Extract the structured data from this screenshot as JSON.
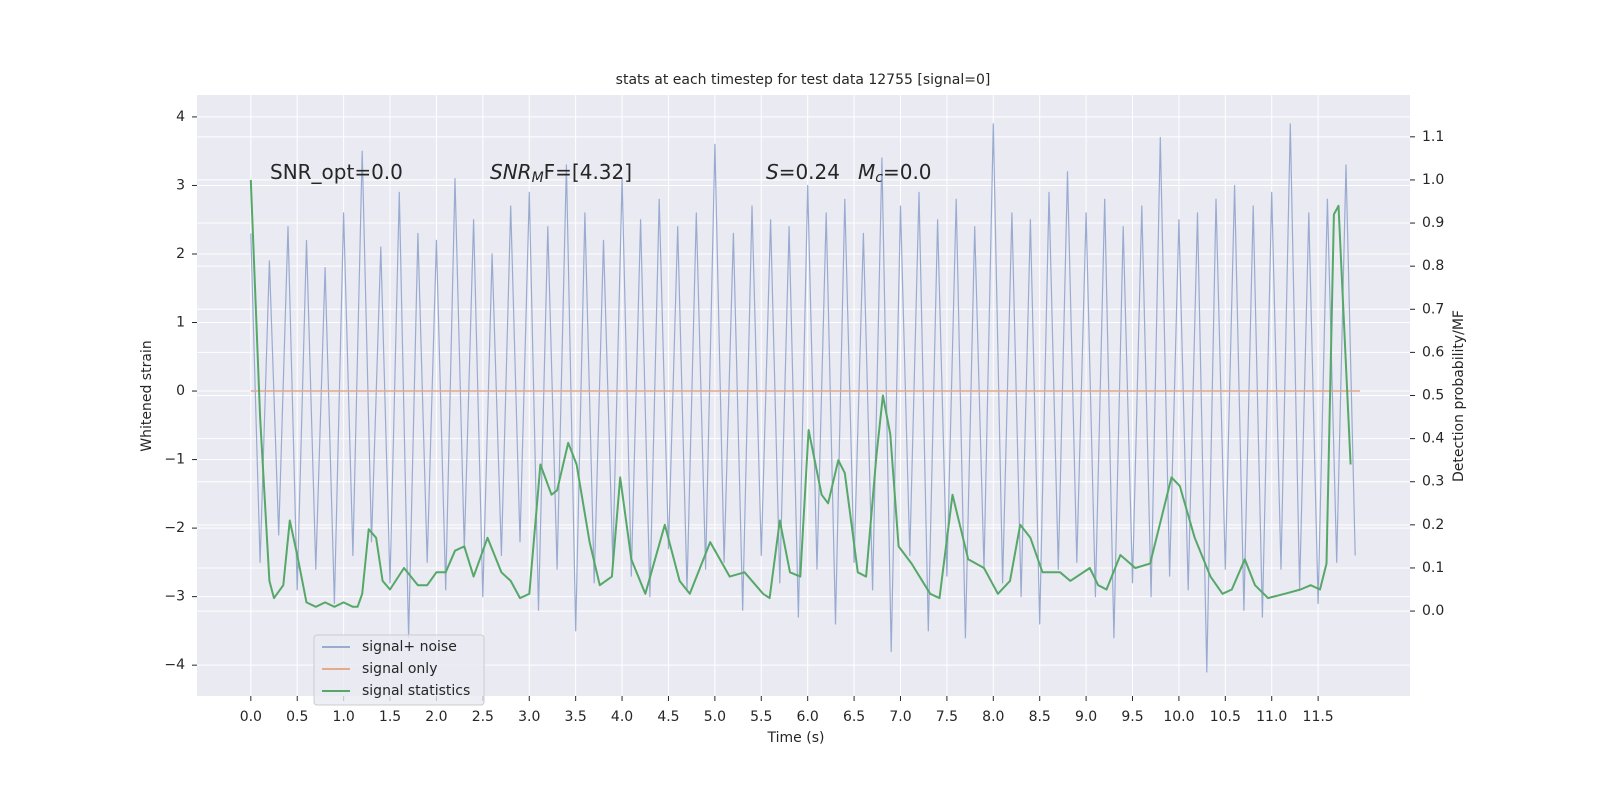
{
  "chart_data": {
    "type": "line",
    "title": "stats at each timestep for test data 12755 [signal=0]",
    "xlabel": "Time (s)",
    "ylabel": "Whitened strain",
    "y2label": "Detection probability/MF",
    "annotations": [
      [
        "SNR_opt=0.0"
      ],
      [
        "SNR",
        "M",
        "F=[4.32]"
      ],
      [
        "S",
        "=0.24"
      ],
      [
        "M",
        "c",
        "=0.0"
      ]
    ],
    "xlim": [
      -0.58,
      12.49
    ],
    "ylim": [
      -4.45,
      4.32
    ],
    "y2lim": [
      -0.197,
      1.197
    ],
    "xticks": [
      {
        "value": 0,
        "label": "0.0"
      },
      0.5,
      {
        "value": 1,
        "label": "1.0"
      },
      1.5,
      {
        "value": 2,
        "label": "2.0"
      },
      2.5,
      {
        "value": 3,
        "label": "3.0"
      },
      3.5,
      {
        "value": 4,
        "label": "4.0"
      },
      4.5,
      {
        "value": 5,
        "label": "5.0"
      },
      5.5,
      {
        "value": 6,
        "label": "6.0"
      },
      6.5,
      {
        "value": 7,
        "label": "7.0"
      },
      7.5,
      {
        "value": 8,
        "label": "8.0"
      },
      8.5,
      {
        "value": 9,
        "label": "9.0"
      },
      9.5,
      {
        "value": 10,
        "label": "10.0"
      },
      10.5,
      {
        "value": 11,
        "label": "11.0"
      },
      11.5
    ],
    "yticks": [
      {
        "value": -4,
        "label": "−4"
      },
      {
        "value": -3,
        "label": "−3"
      },
      {
        "value": -2,
        "label": "−2"
      },
      {
        "value": -1,
        "label": "−1"
      },
      0,
      1,
      2,
      3,
      4
    ],
    "y2ticks": [
      {
        "value": 0,
        "label": "0.0"
      },
      0.1,
      0.2,
      0.3,
      0.4,
      0.5,
      0.6,
      0.7,
      0.8,
      0.9,
      {
        "value": 1,
        "label": "1.0"
      },
      1.1
    ],
    "grid": true,
    "legend": "lower left",
    "series": [
      {
        "name": "signal+ noise",
        "color": "#9aabd0",
        "x": [
          0,
          0.1,
          0.2,
          0.3,
          0.4,
          0.5,
          0.6,
          0.7,
          0.8,
          0.9,
          1,
          1.1,
          1.2,
          1.3,
          1.4,
          1.5,
          1.6,
          1.7,
          1.8,
          1.9,
          2,
          2.1,
          2.2,
          2.3,
          2.4,
          2.5,
          2.6,
          2.7,
          2.8,
          2.9,
          3,
          3.1,
          3.2,
          3.3,
          3.4,
          3.5,
          3.6,
          3.7,
          3.8,
          3.9,
          4,
          4.1,
          4.2,
          4.3,
          4.4,
          4.5,
          4.6,
          4.7,
          4.8,
          4.9,
          5,
          5.1,
          5.2,
          5.3,
          5.4,
          5.5,
          5.6,
          5.7,
          5.8,
          5.9,
          6,
          6.1,
          6.2,
          6.3,
          6.4,
          6.5,
          6.6,
          6.7,
          6.8,
          6.9,
          7,
          7.1,
          7.2,
          7.3,
          7.4,
          7.5,
          7.6,
          7.7,
          7.8,
          7.9,
          8,
          8.1,
          8.2,
          8.3,
          8.4,
          8.5,
          8.6,
          8.7,
          8.8,
          8.9,
          9,
          9.1,
          9.2,
          9.3,
          9.4,
          9.5,
          9.6,
          9.7,
          9.8,
          9.9,
          10,
          10.1,
          10.2,
          10.3,
          10.4,
          10.5,
          10.6,
          10.7,
          10.8,
          10.9,
          11,
          11.1,
          11.2,
          11.3,
          11.4,
          11.5,
          11.6,
          11.7,
          11.8,
          11.9
        ],
        "values": [
          2.3,
          -2.5,
          1.9,
          -2.1,
          2.4,
          -2.9,
          2.2,
          -2.6,
          1.8,
          -3.1,
          2.6,
          -2.4,
          3.5,
          -2.2,
          2.1,
          -2.8,
          2.9,
          -3.6,
          2.3,
          -2.5,
          2.2,
          -2.9,
          3.1,
          -2.3,
          2.5,
          -3.0,
          2.0,
          -2.4,
          2.7,
          -2.2,
          2.9,
          -3.2,
          2.4,
          -2.6,
          3.3,
          -3.5,
          2.6,
          -2.8,
          2.2,
          -2.5,
          3.1,
          -2.7,
          2.5,
          -3.0,
          2.8,
          -2.3,
          2.4,
          -2.9,
          2.6,
          -2.6,
          3.6,
          -2.5,
          2.3,
          -3.2,
          2.7,
          -2.4,
          2.5,
          -2.8,
          2.4,
          -3.3,
          3.0,
          -2.6,
          2.6,
          -3.4,
          2.8,
          -2.5,
          2.3,
          -2.9,
          3.4,
          -3.8,
          2.7,
          -2.4,
          2.9,
          -3.5,
          2.5,
          -2.7,
          2.8,
          -3.6,
          2.4,
          -2.6,
          3.9,
          -2.8,
          2.6,
          -3.0,
          2.5,
          -3.4,
          2.9,
          -2.6,
          3.2,
          -2.5,
          2.6,
          -3.0,
          2.8,
          -3.6,
          2.4,
          -2.8,
          2.7,
          -3.0,
          3.7,
          -2.7,
          2.5,
          -2.9,
          2.6,
          -4.1,
          2.8,
          -2.6,
          3.0,
          -3.2,
          2.7,
          -3.3,
          2.9,
          -2.6,
          3.9,
          -2.9,
          2.6,
          -3.1,
          2.8,
          -2.5,
          3.3,
          -2.4
        ]
      },
      {
        "name": "signal only",
        "color": "#e6a98c",
        "x": [
          0,
          11.95
        ],
        "values": [
          0,
          0
        ]
      },
      {
        "name": "signal statistics",
        "color": "#55a868",
        "axis": "y2",
        "x": [
          0,
          0.1,
          0.2,
          0.25,
          0.35,
          0.42,
          0.5,
          0.6,
          0.7,
          0.8,
          0.9,
          1.0,
          1.1,
          1.15,
          1.2,
          1.27,
          1.35,
          1.42,
          1.5,
          1.65,
          1.8,
          1.9,
          2.0,
          2.1,
          2.2,
          2.3,
          2.4,
          2.55,
          2.7,
          2.8,
          2.9,
          3.0,
          3.12,
          3.24,
          3.3,
          3.42,
          3.51,
          3.65,
          3.76,
          3.89,
          3.98,
          4.1,
          4.25,
          4.46,
          4.62,
          4.73,
          4.95,
          5.16,
          5.32,
          5.52,
          5.59,
          5.7,
          5.81,
          5.92,
          6.01,
          6.15,
          6.22,
          6.33,
          6.4,
          6.54,
          6.63,
          6.74,
          6.81,
          6.89,
          6.98,
          7.12,
          7.32,
          7.42,
          7.56,
          7.73,
          7.9,
          8.05,
          8.18,
          8.29,
          8.4,
          8.53,
          8.72,
          8.83,
          9.04,
          9.13,
          9.22,
          9.37,
          9.53,
          9.69,
          9.92,
          10.01,
          10.17,
          10.34,
          10.47,
          10.57,
          10.71,
          10.82,
          10.96,
          11.14,
          11.31,
          11.42,
          11.52,
          11.59,
          11.67,
          11.72,
          11.85
        ],
        "values": [
          1.0,
          0.45,
          0.07,
          0.03,
          0.06,
          0.21,
          0.13,
          0.02,
          0.01,
          0.02,
          0.01,
          0.02,
          0.01,
          0.01,
          0.04,
          0.19,
          0.17,
          0.07,
          0.05,
          0.1,
          0.06,
          0.06,
          0.09,
          0.09,
          0.14,
          0.15,
          0.08,
          0.17,
          0.09,
          0.07,
          0.03,
          0.04,
          0.34,
          0.27,
          0.28,
          0.39,
          0.34,
          0.16,
          0.06,
          0.08,
          0.31,
          0.12,
          0.04,
          0.2,
          0.07,
          0.04,
          0.16,
          0.08,
          0.09,
          0.04,
          0.03,
          0.21,
          0.09,
          0.08,
          0.42,
          0.27,
          0.25,
          0.35,
          0.32,
          0.09,
          0.08,
          0.36,
          0.5,
          0.41,
          0.15,
          0.11,
          0.04,
          0.03,
          0.27,
          0.12,
          0.1,
          0.04,
          0.07,
          0.2,
          0.17,
          0.09,
          0.09,
          0.07,
          0.1,
          0.06,
          0.05,
          0.13,
          0.1,
          0.11,
          0.31,
          0.29,
          0.17,
          0.08,
          0.04,
          0.05,
          0.12,
          0.06,
          0.03,
          0.04,
          0.05,
          0.06,
          0.05,
          0.11,
          0.92,
          0.94,
          0.34
        ]
      }
    ]
  }
}
